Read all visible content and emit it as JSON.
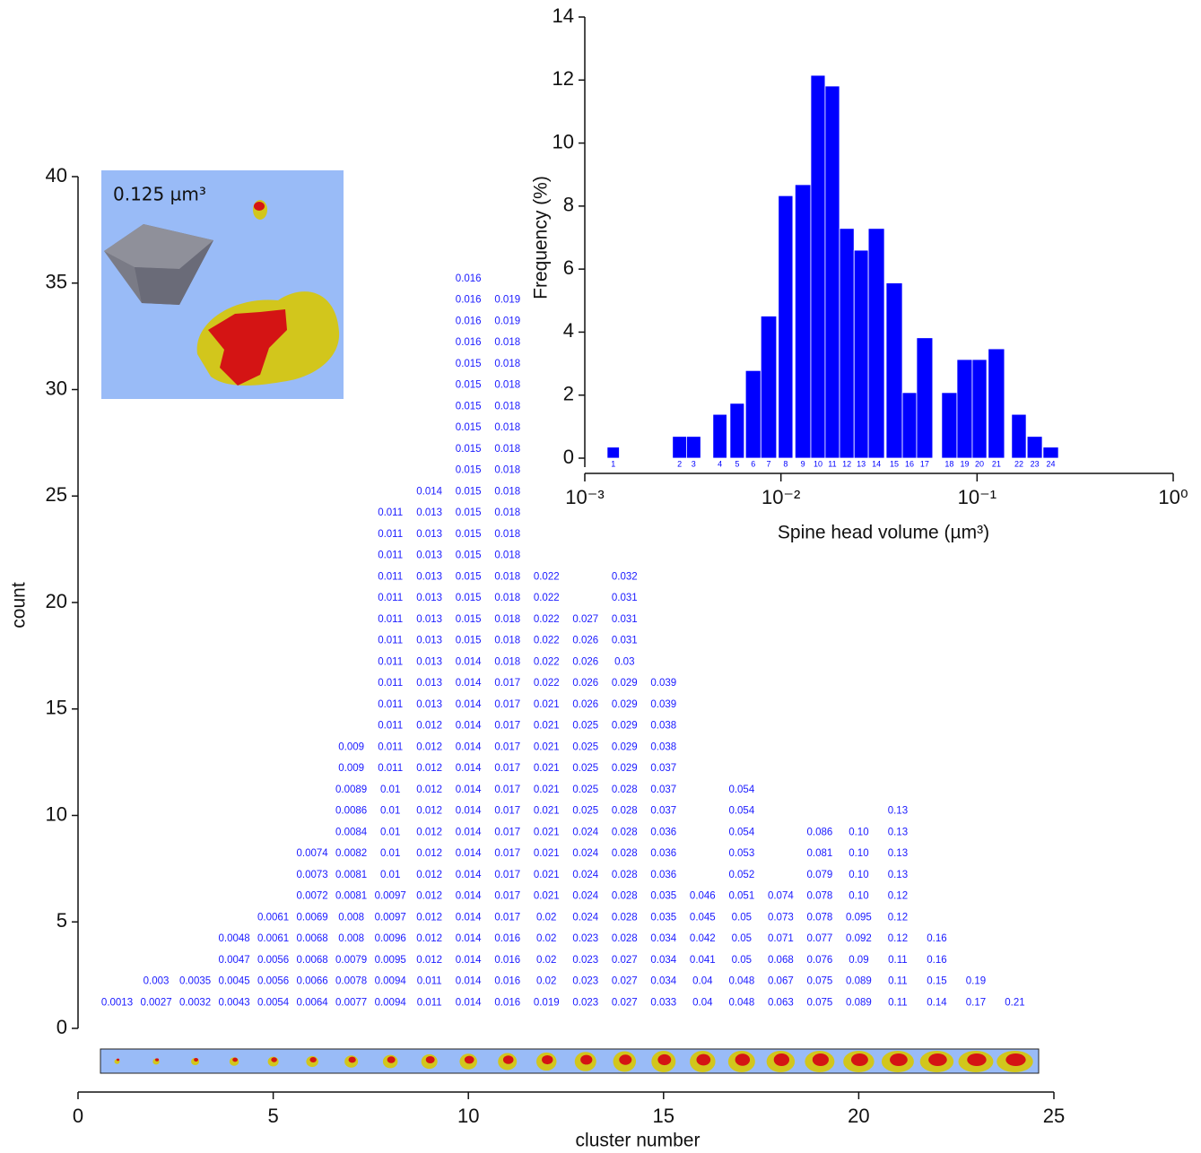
{
  "chart_data": [
    {
      "type": "stack",
      "xlabel": "cluster number",
      "ylabel": "count",
      "xlim": [
        0,
        25
      ],
      "xticks": [
        0,
        5,
        10,
        15,
        20,
        25
      ],
      "ylim": [
        0,
        40
      ],
      "yticks": [
        0,
        5,
        10,
        15,
        20,
        25,
        30,
        35,
        40
      ],
      "inset_label": "0.125 µm³",
      "color": "#1a1aff",
      "x": [
        1,
        2,
        3,
        4,
        5,
        6,
        7,
        8,
        9,
        10,
        11,
        12,
        13,
        14,
        15,
        16,
        17,
        18,
        19,
        20,
        21,
        22,
        23,
        24
      ],
      "columns": [
        [
          "0.0013"
        ],
        [
          "0.0027",
          "0.003"
        ],
        [
          "0.0032",
          "0.0035"
        ],
        [
          "0.0043",
          "0.0045",
          "0.0047",
          "0.0048"
        ],
        [
          "0.0054",
          "0.0056",
          "0.0056",
          "0.0061",
          "0.0061"
        ],
        [
          "0.0064",
          "0.0066",
          "0.0068",
          "0.0068",
          "0.0069",
          "0.0072",
          "0.0073",
          "0.0074"
        ],
        [
          "0.0077",
          "0.0078",
          "0.0079",
          "0.008",
          "0.008",
          "0.0081",
          "0.0081",
          "0.0082",
          "0.0084",
          "0.0086",
          "0.0089",
          "0.009",
          "0.009"
        ],
        [
          "0.0094",
          "0.0094",
          "0.0095",
          "0.0096",
          "0.0097",
          "0.0097",
          "0.01",
          "0.01",
          "0.01",
          "0.01",
          "0.01",
          "0.011",
          "0.011",
          "0.011",
          "0.011",
          "0.011",
          "0.011",
          "0.011",
          "0.011",
          "0.011",
          "0.011",
          "0.011",
          "0.011",
          "0.011"
        ],
        [
          "0.011",
          "0.011",
          "0.012",
          "0.012",
          "0.012",
          "0.012",
          "0.012",
          "0.012",
          "0.012",
          "0.012",
          "0.012",
          "0.012",
          "0.012",
          "0.012",
          "0.013",
          "0.013",
          "0.013",
          "0.013",
          "0.013",
          "0.013",
          "0.013",
          "0.013",
          "0.013",
          "0.013",
          "0.014"
        ],
        [
          "0.014",
          "0.014",
          "0.014",
          "0.014",
          "0.014",
          "0.014",
          "0.014",
          "0.014",
          "0.014",
          "0.014",
          "0.014",
          "0.014",
          "0.014",
          "0.014",
          "0.014",
          "0.014",
          "0.014",
          "0.015",
          "0.015",
          "0.015",
          "0.015",
          "0.015",
          "0.015",
          "0.015",
          "0.015",
          "0.015",
          "0.015",
          "0.015",
          "0.015",
          "0.015",
          "0.015",
          "0.016",
          "0.016",
          "0.016",
          "0.016"
        ],
        [
          "0.016",
          "0.016",
          "0.016",
          "0.016",
          "0.017",
          "0.017",
          "0.017",
          "0.017",
          "0.017",
          "0.017",
          "0.017",
          "0.017",
          "0.017",
          "0.017",
          "0.017",
          "0.017",
          "0.018",
          "0.018",
          "0.018",
          "0.018",
          "0.018",
          "0.018",
          "0.018",
          "0.018",
          "0.018",
          "0.018",
          "0.018",
          "0.018",
          "0.018",
          "0.018",
          "0.018",
          "0.018",
          "0.019",
          "0.019"
        ],
        [
          "0.019",
          "0.02",
          "0.02",
          "0.02",
          "0.02",
          "0.021",
          "0.021",
          "0.021",
          "0.021",
          "0.021",
          "0.021",
          "0.021",
          "0.021",
          "0.021",
          "0.021",
          "0.022",
          "0.022",
          "0.022",
          "0.022",
          "0.022",
          "0.022"
        ],
        [
          "0.023",
          "0.023",
          "0.023",
          "0.023",
          "0.024",
          "0.024",
          "0.024",
          "0.024",
          "0.024",
          "0.025",
          "0.025",
          "0.025",
          "0.025",
          "0.025",
          "0.026",
          "0.026",
          "0.026",
          "0.026",
          "0.027"
        ],
        [
          "0.027",
          "0.027",
          "0.027",
          "0.028",
          "0.028",
          "0.028",
          "0.028",
          "0.028",
          "0.028",
          "0.028",
          "0.028",
          "0.029",
          "0.029",
          "0.029",
          "0.029",
          "0.029",
          "0.03",
          "0.031",
          "0.031",
          "0.031",
          "0.032"
        ],
        [
          "0.033",
          "0.034",
          "0.034",
          "0.034",
          "0.035",
          "0.035",
          "0.036",
          "0.036",
          "0.036",
          "0.037",
          "0.037",
          "0.037",
          "0.038",
          "0.038",
          "0.039",
          "0.039"
        ],
        [
          "0.04",
          "0.04",
          "0.041",
          "0.042",
          "0.045",
          "0.046"
        ],
        [
          "0.048",
          "0.048",
          "0.05",
          "0.05",
          "0.05",
          "0.051",
          "0.052",
          "0.053",
          "0.054",
          "0.054",
          "0.054"
        ],
        [
          "0.063",
          "0.067",
          "0.068",
          "0.071",
          "0.073",
          "0.074"
        ],
        [
          "0.075",
          "0.075",
          "0.076",
          "0.077",
          "0.078",
          "0.078",
          "0.079",
          "0.081",
          "0.086"
        ],
        [
          "0.089",
          "0.089",
          "0.09",
          "0.092",
          "0.095",
          "0.10",
          "0.10",
          "0.10",
          "0.10"
        ],
        [
          "0.11",
          "0.11",
          "0.11",
          "0.12",
          "0.12",
          "0.12",
          "0.13",
          "0.13",
          "0.13",
          "0.13"
        ],
        [
          "0.14",
          "0.15",
          "0.16",
          "0.16"
        ],
        [
          "0.17",
          "0.19"
        ],
        [
          "0.21"
        ]
      ]
    },
    {
      "type": "histogram",
      "xlabel": "Spine head volume (µm³)",
      "ylabel": "Frequency (%)",
      "xscale": "log",
      "xlim": [
        0.001,
        1
      ],
      "xticks": [
        {
          "value": 0.001,
          "label": "10⁻³"
        },
        {
          "value": 0.01,
          "label": "10⁻²"
        },
        {
          "value": 0.1,
          "label": "10⁻¹"
        },
        {
          "value": 1,
          "label": "10⁰"
        }
      ],
      "ylim": [
        0,
        14
      ],
      "yticks": [
        0,
        2,
        4,
        6,
        8,
        10,
        12,
        14
      ],
      "color": "#0000ff",
      "categories": [
        "1",
        "2",
        "3",
        "4",
        "5",
        "6",
        "7",
        "8",
        "9",
        "10",
        "11",
        "12",
        "13",
        "14",
        "15",
        "16",
        "17",
        "18",
        "19",
        "20",
        "21",
        "22",
        "23",
        "24"
      ],
      "bar_left": [
        0.0013,
        0.0028,
        0.0033,
        0.0045,
        0.0055,
        0.0066,
        0.0079,
        0.0097,
        0.0118,
        0.0142,
        0.0168,
        0.0199,
        0.0236,
        0.0279,
        0.0344,
        0.0416,
        0.0492,
        0.066,
        0.079,
        0.0945,
        0.114,
        0.15,
        0.18,
        0.217
      ],
      "bar_right": [
        0.0015,
        0.0033,
        0.0039,
        0.0053,
        0.0065,
        0.0079,
        0.0095,
        0.0115,
        0.0142,
        0.0168,
        0.0199,
        0.0236,
        0.0279,
        0.0337,
        0.0416,
        0.0492,
        0.0594,
        0.079,
        0.0945,
        0.112,
        0.138,
        0.178,
        0.215,
        0.26
      ],
      "values": [
        0.35,
        0.69,
        0.69,
        1.39,
        1.74,
        2.78,
        4.51,
        8.33,
        8.68,
        12.15,
        11.81,
        7.29,
        6.6,
        7.29,
        5.56,
        2.08,
        3.82,
        2.08,
        3.13,
        3.13,
        3.47,
        1.39,
        0.69,
        0.35
      ]
    }
  ]
}
